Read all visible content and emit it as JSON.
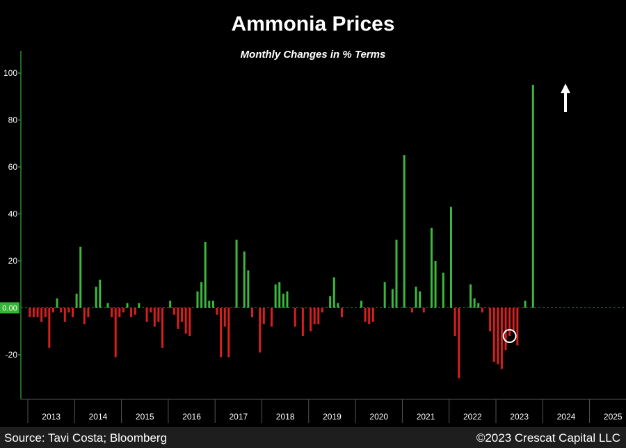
{
  "chart_data": {
    "type": "bar",
    "title": "Ammonia Prices",
    "subtitle": "Monthly Changes in % Terms",
    "xlabel": "",
    "ylabel": "",
    "ylim": [
      -38,
      110
    ],
    "yticks": [
      100,
      80,
      60,
      40,
      20,
      -20
    ],
    "zero_label": "0.00",
    "years": [
      "2013",
      "2014",
      "2015",
      "2016",
      "2017",
      "2018",
      "2019",
      "2020",
      "2021",
      "2022",
      "2023",
      "2024",
      "2025"
    ],
    "start": "2013-01",
    "highlight_index": 123,
    "up_arrow": true,
    "values": [
      -4,
      -4,
      -4,
      -6,
      -4,
      -17,
      -2,
      4,
      -2,
      -6,
      -2,
      -4,
      6,
      26,
      -7,
      -4,
      0,
      9,
      12,
      0,
      2,
      -4,
      -21,
      -4,
      -2,
      2,
      -4,
      -3,
      2,
      0,
      -6,
      -2,
      -8,
      -6,
      -17,
      0,
      3,
      -3,
      -9,
      -6,
      -11,
      -12,
      0,
      7,
      11,
      28,
      3,
      3,
      -3,
      -21,
      -8,
      -21,
      0,
      29,
      0,
      24,
      16,
      -4,
      0,
      -19,
      -7,
      0,
      -8,
      10,
      11,
      6,
      7,
      0,
      -8,
      0,
      -12,
      0,
      -10,
      -7,
      -7,
      -2,
      0,
      5,
      13,
      2,
      -4,
      0,
      0,
      0,
      0,
      3,
      -6,
      -7,
      -6,
      0,
      0,
      11,
      0,
      8,
      29,
      0,
      65,
      0,
      -2,
      9,
      7,
      -2,
      0,
      34,
      20,
      0,
      15,
      0,
      43,
      -12,
      -30,
      0,
      0,
      10,
      4,
      2,
      -2,
      0,
      -10,
      -23,
      -24,
      -26,
      -18,
      -12,
      -10,
      -16,
      0,
      3,
      0,
      95
    ]
  },
  "footer": {
    "source": "Source: Tavi Costa; Bloomberg",
    "copyright": "©2023 Crescat Capital LLC"
  },
  "colors": {
    "background": "#000000",
    "positive": "#3cb83c",
    "negative": "#d71f1f",
    "axis": "#2f8a2f",
    "zero_box": "#35b535",
    "footer_bg": "#1e1e1e"
  }
}
